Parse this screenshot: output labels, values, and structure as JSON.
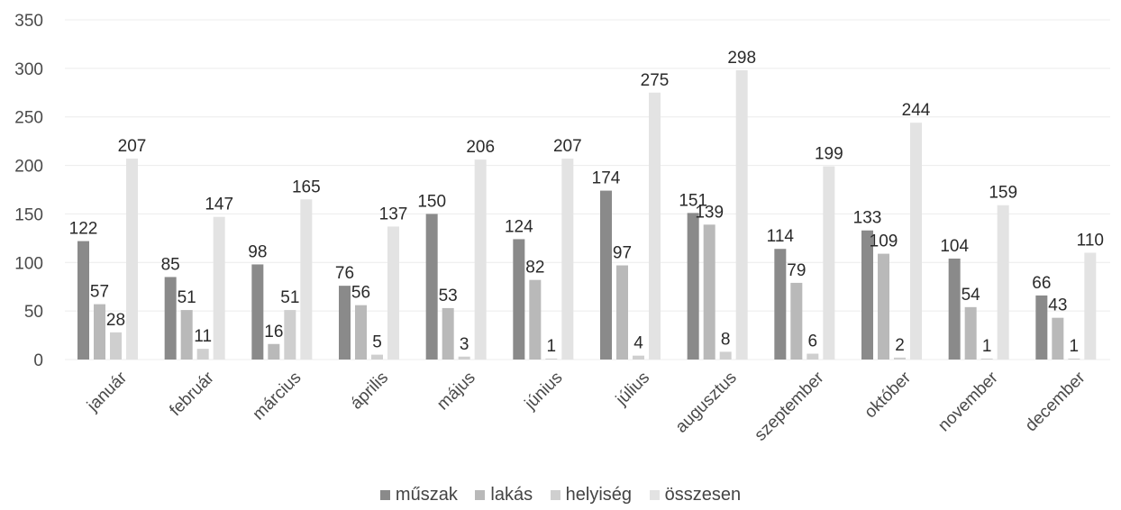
{
  "chart_data": {
    "type": "bar",
    "categories": [
      "január",
      "február",
      "március",
      "április",
      "május",
      "június",
      "július",
      "augusztus",
      "szeptember",
      "október",
      "november",
      "december"
    ],
    "series": [
      {
        "name": "műszak",
        "color": "#8a8a8a",
        "values": [
          122,
          85,
          98,
          76,
          150,
          124,
          174,
          151,
          114,
          133,
          104,
          66
        ]
      },
      {
        "name": "lakás",
        "color": "#b9b9b9",
        "values": [
          57,
          51,
          16,
          56,
          53,
          82,
          97,
          139,
          79,
          109,
          54,
          43
        ]
      },
      {
        "name": "helyiség",
        "color": "#cfcfcf",
        "values": [
          28,
          11,
          51,
          5,
          3,
          1,
          4,
          8,
          6,
          2,
          1,
          1
        ]
      },
      {
        "name": "összesen",
        "color": "#e3e3e3",
        "values": [
          207,
          147,
          165,
          137,
          206,
          207,
          275,
          298,
          199,
          244,
          159,
          110
        ]
      }
    ],
    "y_ticks": [
      "0",
      "50",
      "100",
      "150",
      "200",
      "250",
      "300",
      "350"
    ],
    "ylim": [
      0,
      350
    ],
    "grid": true,
    "legend_position": "bottom",
    "title": "",
    "xlabel": "",
    "ylabel": ""
  }
}
